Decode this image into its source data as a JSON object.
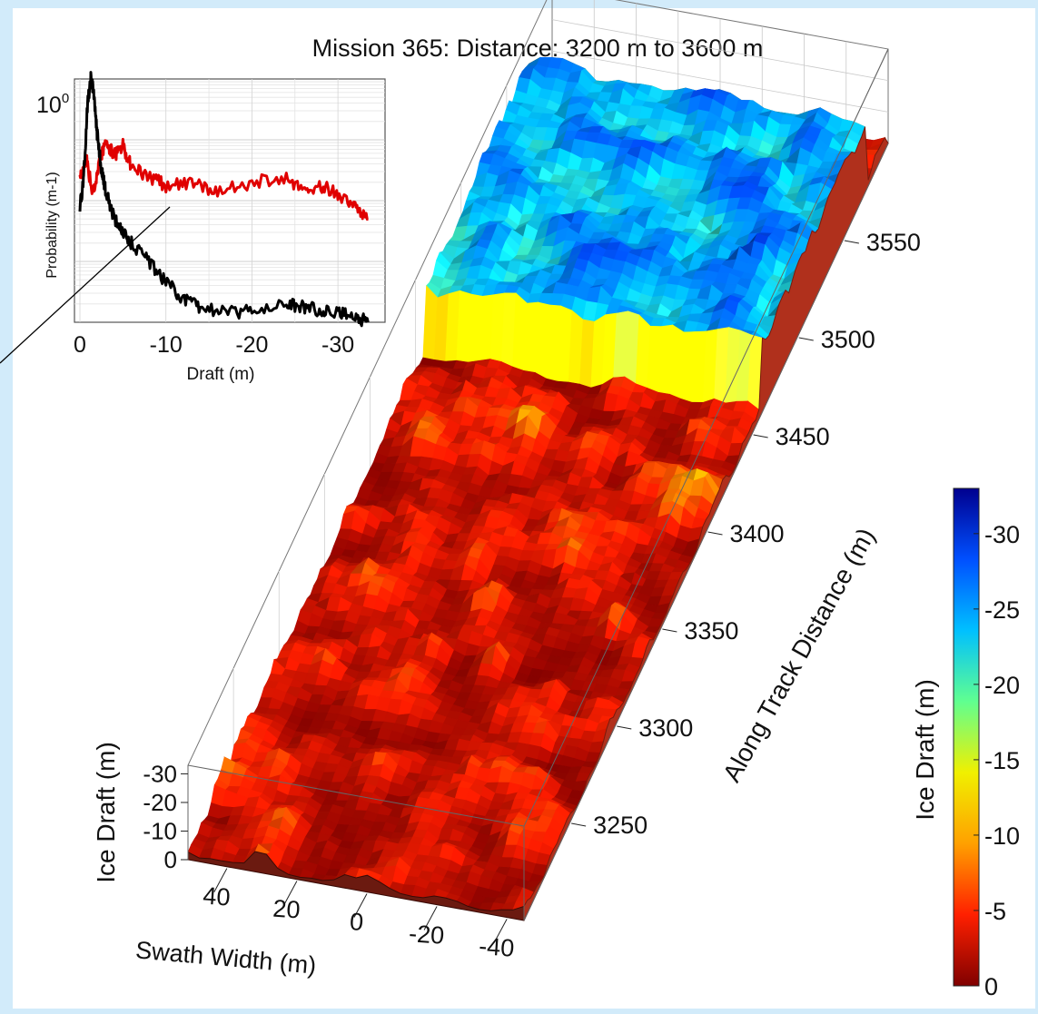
{
  "title": "Mission 365:  Distance: 3200 m to 3600 m",
  "chart_data": [
    {
      "type": "surface",
      "title": "Mission 365:  Distance: 3200 m to 3600 m",
      "zlabel": "Ice Draft (m)",
      "xlabel": "Swath Width (m)",
      "ylabel": "Along Track Distance (m)",
      "zticks": [
        "-30",
        "-20",
        "-10",
        "0"
      ],
      "xticks": [
        "40",
        "20",
        "0",
        "-20",
        "-40"
      ],
      "yticks": [
        "3250",
        "3300",
        "3350",
        "3400",
        "3450",
        "3500",
        "3550"
      ],
      "zlim": [
        0,
        -33
      ],
      "xlim": [
        48,
        -48
      ],
      "ylim": [
        3200,
        3600
      ],
      "grid": true,
      "surface_regions": [
        {
          "from": 3200,
          "to": 3410,
          "peak_draft": -12
        },
        {
          "from": 3410,
          "to": 3460,
          "peak_draft": -15
        },
        {
          "from": 3460,
          "to": 3575,
          "peak_draft": -32
        },
        {
          "from": 3575,
          "to": 3600,
          "peak_draft": -10
        }
      ],
      "colorbar": {
        "label": "Ice Draft (m)",
        "ticks": [
          "-30",
          "-25",
          "-20",
          "-15",
          "-10",
          "-5",
          "0"
        ],
        "range": [
          0,
          -33
        ],
        "colors": [
          "#800000",
          "#ff2000",
          "#ffa000",
          "#f0f000",
          "#60ff90",
          "#00c0ff",
          "#0050ff",
          "#00008f"
        ]
      }
    },
    {
      "type": "line",
      "xlabel": "Draft (m)",
      "ylabel": "Probability (m-1)",
      "xticks": [
        "0",
        "-10",
        "-20",
        "-30"
      ],
      "ytick": "10",
      "ytick_exponent": "0",
      "xlim": [
        0,
        -34
      ],
      "ylim": [
        -4,
        0
      ],
      "yscale": "log",
      "grid": true,
      "series": [
        {
          "color": "#e00000",
          "x": [
            0,
            -0.8,
            -1.5,
            -2.2,
            -3,
            -4,
            -5,
            -6,
            -8,
            -10,
            -13,
            -16,
            -20,
            -24,
            -26,
            -28,
            -30,
            -32,
            -33.5
          ],
          "y": [
            -1.6,
            -1.35,
            -1.9,
            -1.4,
            -1.05,
            -1.25,
            -1.1,
            -1.45,
            -1.6,
            -1.75,
            -1.7,
            -1.85,
            -1.7,
            -1.6,
            -1.85,
            -1.75,
            -1.9,
            -2.1,
            -2.3
          ]
        },
        {
          "color": "#000000",
          "x": [
            0,
            -0.4,
            -0.9,
            -1.3,
            -1.6,
            -2,
            -2.5,
            -3,
            -4,
            -5,
            -6,
            -8,
            -10,
            -12,
            -14,
            -17,
            -20,
            -24,
            -26,
            -28,
            -30,
            -32,
            -33.5
          ],
          "y": [
            -2.1,
            -1.7,
            -0.4,
            0.05,
            -0.25,
            -0.9,
            -1.5,
            -1.85,
            -2.3,
            -2.5,
            -2.7,
            -3.0,
            -3.35,
            -3.6,
            -3.75,
            -3.85,
            -3.8,
            -3.7,
            -3.75,
            -3.8,
            -3.85,
            -3.9,
            -4.0
          ]
        }
      ]
    }
  ]
}
